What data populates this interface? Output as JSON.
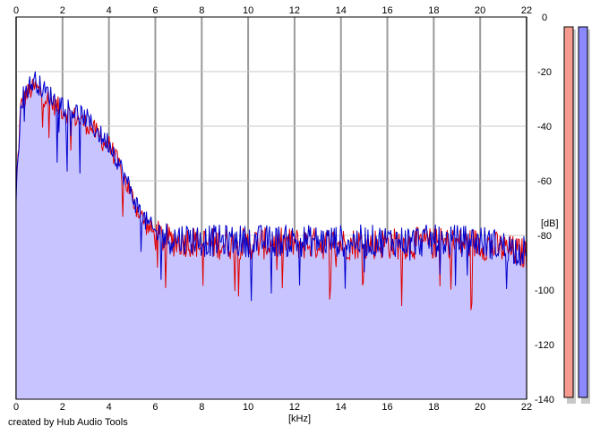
{
  "footer": {
    "credit": "created by Hub Audio Tools"
  },
  "chart_data": {
    "type": "area",
    "title": "",
    "xlabel": "[kHz]",
    "ylabel": "[dB]",
    "xlim": [
      0,
      22
    ],
    "ylim": [
      -140,
      0
    ],
    "x_ticks": [
      0,
      2,
      4,
      6,
      8,
      10,
      12,
      14,
      16,
      18,
      20,
      22
    ],
    "y_ticks": [
      0,
      -20,
      -40,
      -60,
      -80,
      -100,
      -120,
      -140
    ],
    "x_tick_labels": [
      "0",
      "2",
      "4",
      "6",
      "8",
      "10",
      "12",
      "14",
      "16",
      "18",
      "20",
      "22"
    ],
    "y_tick_labels": [
      "0",
      "-20",
      "-40",
      "-60",
      "-80",
      "-100",
      "-120",
      "-140"
    ],
    "grid": true,
    "legend": "none",
    "series": [
      {
        "color": "#e00000",
        "x": [
          0.0,
          0.2,
          0.4,
          0.6,
          0.8,
          1.0,
          1.2,
          1.4,
          1.6,
          1.8,
          2.0,
          2.2,
          2.4,
          2.6,
          2.8,
          3.0,
          3.2,
          3.4,
          3.6,
          3.8,
          4.0,
          4.2,
          4.4,
          4.6,
          4.8,
          5.0,
          5.2,
          5.4,
          5.6,
          5.8,
          6.0,
          6.3,
          6.6,
          7.0,
          7.5,
          8.0,
          9.0,
          10.0,
          11.0,
          12.0,
          13.0,
          14.0,
          15.0,
          16.0,
          17.0,
          18.0,
          19.0,
          20.0,
          20.5,
          21.0,
          21.5,
          22.0
        ],
        "values": [
          -64,
          -33,
          -29,
          -27,
          -26,
          -27,
          -29,
          -30,
          -32,
          -33,
          -34,
          -35,
          -36,
          -37,
          -38,
          -39,
          -40,
          -42,
          -44,
          -46,
          -47,
          -50,
          -54,
          -58,
          -62,
          -66,
          -70,
          -73,
          -76,
          -78,
          -80,
          -81,
          -82,
          -82,
          -82,
          -83,
          -83,
          -83,
          -83,
          -83,
          -83,
          -83,
          -83,
          -83,
          -83,
          -83,
          -83,
          -83,
          -84,
          -85,
          -86,
          -87
        ]
      },
      {
        "color": "#0000cc",
        "x": [
          0.0,
          0.2,
          0.4,
          0.6,
          0.8,
          1.0,
          1.2,
          1.4,
          1.6,
          1.8,
          2.0,
          2.2,
          2.4,
          2.6,
          2.8,
          3.0,
          3.2,
          3.4,
          3.6,
          3.8,
          4.0,
          4.2,
          4.4,
          4.6,
          4.8,
          5.0,
          5.2,
          5.4,
          5.6,
          5.8,
          6.0,
          6.3,
          6.6,
          7.0,
          7.5,
          8.0,
          9.0,
          10.0,
          11.0,
          12.0,
          13.0,
          14.0,
          15.0,
          16.0,
          17.0,
          18.0,
          19.0,
          20.0,
          20.5,
          21.0,
          21.5,
          22.0
        ],
        "values": [
          -66,
          -31,
          -27,
          -25,
          -23,
          -25,
          -27,
          -28,
          -30,
          -31,
          -32,
          -33,
          -34,
          -35,
          -36,
          -37,
          -39,
          -41,
          -43,
          -45,
          -46,
          -49,
          -53,
          -57,
          -61,
          -65,
          -69,
          -72,
          -75,
          -77,
          -79,
          -80,
          -81,
          -81,
          -81,
          -82,
          -82,
          -82,
          -82,
          -82,
          -82,
          -82,
          -82,
          -82,
          -82,
          -82,
          -82,
          -82,
          -83,
          -84,
          -85,
          -86
        ]
      }
    ],
    "fill_color": "#c8c4ff",
    "level_meters": [
      {
        "color": "#f59b90"
      },
      {
        "color": "#8c88ff"
      }
    ]
  }
}
